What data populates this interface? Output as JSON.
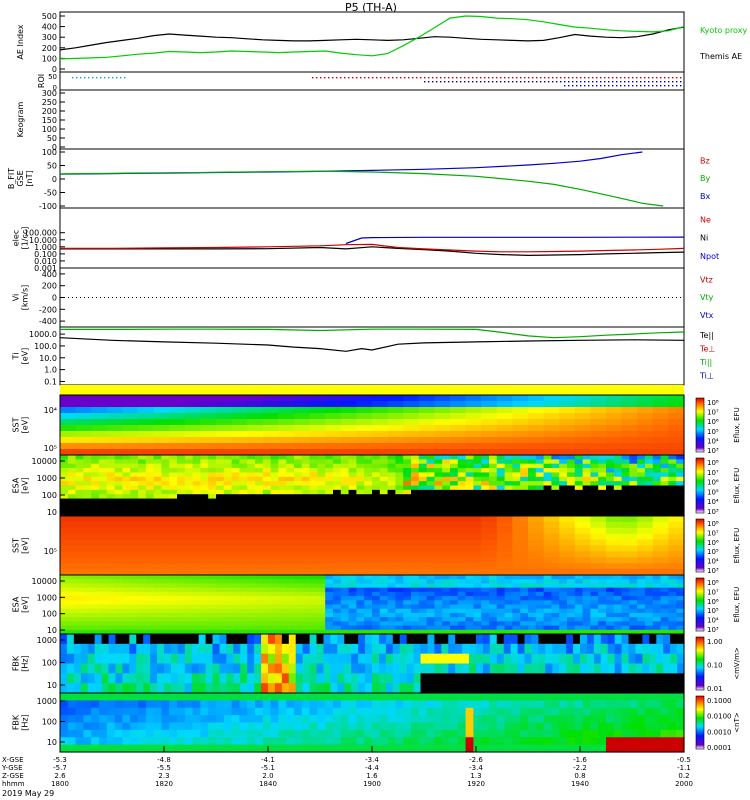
{
  "chart_data": {
    "type": "line",
    "title": "P5 (TH-A)",
    "date": "2019 May 29",
    "x_axis": {
      "ticks": [
        "1800",
        "1820",
        "1840",
        "1900",
        "1920",
        "1940",
        "2000"
      ],
      "rows": [
        {
          "label": "X-GSE",
          "values": [
            "-5.3",
            "-4.8",
            "-4.1",
            "-3.4",
            "-2.6",
            "-1.6",
            "-0.5"
          ]
        },
        {
          "label": "Y-GSE",
          "values": [
            "-5.7",
            "-5.5",
            "-5.1",
            "-4.4",
            "-3.4",
            "-2.2",
            "-1.1"
          ]
        },
        {
          "label": "Z-GSE",
          "values": [
            "2.6",
            "2.3",
            "2.0",
            "1.6",
            "1.3",
            "0.8",
            "0.2"
          ]
        },
        {
          "label": "hhmm",
          "values": [
            "1800",
            "1820",
            "1840",
            "1900",
            "1920",
            "1940",
            "2000"
          ]
        }
      ]
    },
    "panels": [
      {
        "id": "ae",
        "ylabel": [
          "AE Index"
        ],
        "ylim": [
          0,
          500
        ],
        "yticks": [
          "500",
          "400",
          "300",
          "200",
          "100",
          "0"
        ],
        "legend": [
          {
            "text": "Kyoto proxy AE",
            "color": "#00cc00"
          },
          {
            "text": "Themis AE",
            "color": "#000000"
          }
        ],
        "series": [
          {
            "name": "Themis AE",
            "color": "#000000",
            "x": [
              0,
              3,
              6,
              9,
              12,
              15,
              18,
              21,
              24,
              27,
              30,
              33,
              36,
              39,
              42,
              45,
              48,
              51,
              54,
              57,
              60,
              63,
              66,
              69,
              72,
              75,
              78,
              81,
              84,
              87,
              90,
              93,
              96,
              99,
              102,
              105,
              108,
              111,
              114,
              117,
              120
            ],
            "y": [
              180,
              200,
              225,
              250,
              270,
              290,
              315,
              330,
              320,
              310,
              300,
              295,
              285,
              275,
              270,
              265,
              265,
              270,
              275,
              280,
              275,
              270,
              275,
              290,
              305,
              300,
              290,
              280,
              275,
              270,
              265,
              270,
              295,
              325,
              310,
              300,
              295,
              305,
              330,
              370,
              395
            ]
          },
          {
            "name": "Kyoto proxy AE",
            "color": "#00cc00",
            "x": [
              0,
              3,
              6,
              9,
              12,
              15,
              18,
              21,
              24,
              27,
              30,
              33,
              36,
              39,
              42,
              45,
              48,
              51,
              54,
              57,
              60,
              63,
              66,
              69,
              72,
              75,
              78,
              81,
              84,
              87,
              90,
              93,
              96,
              99,
              102,
              105,
              108,
              111,
              114,
              117,
              120
            ],
            "y": [
              95,
              100,
              105,
              110,
              125,
              140,
              150,
              165,
              160,
              155,
              160,
              170,
              165,
              160,
              155,
              160,
              165,
              170,
              150,
              135,
              125,
              145,
              220,
              300,
              390,
              480,
              500,
              495,
              480,
              475,
              465,
              445,
              420,
              395,
              385,
              370,
              360,
              355,
              350,
              360,
              400
            ]
          }
        ]
      },
      {
        "id": "roi",
        "ylabel": [
          "ROI"
        ],
        "ytick_top": "50",
        "ytick_bottom": "0"
      },
      {
        "id": "keogram",
        "ylabel": [
          "Keogram"
        ],
        "ylim": [
          0,
          300
        ],
        "yticks": [
          "300",
          "250",
          "200",
          "150",
          "100",
          "50",
          "0"
        ]
      },
      {
        "id": "bfit",
        "ylabel": [
          "B_FIT",
          "GSE",
          "[nT]"
        ],
        "ylim": [
          -100,
          100
        ],
        "yticks": [
          "100",
          "50",
          "0",
          "-50",
          "-100"
        ],
        "legend": [
          {
            "text": "Bz",
            "color": "#cc0000"
          },
          {
            "text": "By",
            "color": "#00aa00"
          },
          {
            "text": "Bx",
            "color": "#0000cc"
          }
        ],
        "series": [
          {
            "name": "Bx",
            "color": "#0000cc",
            "x": [
              0,
              10,
              20,
              30,
              40,
              50,
              60,
              70,
              80,
              90,
              95,
              100,
              104,
              108,
              112
            ],
            "y": [
              18,
              20,
              22,
              24,
              26,
              28,
              32,
              36,
              42,
              52,
              58,
              66,
              76,
              90,
              100
            ]
          },
          {
            "name": "By",
            "color": "#00aa00",
            "x": [
              0,
              10,
              20,
              30,
              40,
              50,
              60,
              70,
              80,
              90,
              95,
              100,
              104,
              108,
              112,
              116
            ],
            "y": [
              19,
              21,
              23,
              25,
              27,
              29,
              26,
              20,
              10,
              -8,
              -20,
              -38,
              -55,
              -72,
              -90,
              -100
            ]
          }
        ]
      },
      {
        "id": "dens",
        "ylabel": [
          "elec",
          "[1/cc]"
        ],
        "ylim_log": [
          -3,
          5.5
        ],
        "yticks": [
          "100.000",
          "10.000",
          "1.000",
          "0.100",
          "0.010",
          "0.001"
        ],
        "legend": [
          {
            "text": "Ne",
            "color": "#cc0000"
          },
          {
            "text": "Ni",
            "color": "#000000"
          },
          {
            "text": "Npot",
            "color": "#0000cc"
          }
        ],
        "series": [
          {
            "name": "Ni",
            "color": "#000000",
            "x": [
              0,
              10,
              20,
              30,
              40,
              50,
              55,
              60,
              65,
              70,
              75,
              80,
              85,
              90,
              95,
              100,
              105,
              110,
              115,
              120
            ],
            "y": [
              0.5,
              0.5,
              0.5,
              0.5,
              0.55,
              0.8,
              0.5,
              1.0,
              0.6,
              0.4,
              0.25,
              0.12,
              0.08,
              0.06,
              0.07,
              0.08,
              0.1,
              0.12,
              0.15,
              0.18
            ]
          },
          {
            "name": "Ne",
            "color": "#cc0000",
            "x": [
              0,
              10,
              20,
              30,
              40,
              50,
              55,
              60,
              65,
              70,
              75,
              80,
              85,
              90,
              95,
              100,
              105,
              110,
              115,
              120
            ],
            "y": [
              0.6,
              0.6,
              0.7,
              0.8,
              1.0,
              1.4,
              2.0,
              2.2,
              0.8,
              0.5,
              0.35,
              0.25,
              0.2,
              0.2,
              0.22,
              0.25,
              0.3,
              0.35,
              0.45,
              0.6
            ]
          },
          {
            "name": "Npot",
            "color": "#0000cc",
            "x": [
              55,
              58,
              60,
              70,
              80,
              90,
              100,
              110,
              120
            ],
            "y": [
              3,
              18,
              20,
              22,
              22,
              22,
              22,
              23,
              24
            ]
          }
        ]
      },
      {
        "id": "vel",
        "ylabel": [
          "Vi",
          "[km/s]"
        ],
        "ylim": [
          -500,
          500
        ],
        "yticks": [
          "400",
          "200",
          "0",
          "-200",
          "-400"
        ],
        "legend": [
          {
            "text": "Vtz",
            "color": "#cc0000"
          },
          {
            "text": "Vty",
            "color": "#00aa00"
          },
          {
            "text": "Vtx",
            "color": "#0000cc"
          }
        ]
      },
      {
        "id": "temp",
        "ylabel": [
          "Ti",
          "[eV]"
        ],
        "ylim_log": [
          -1.3,
          3.6
        ],
        "yticks": [
          "1000.0",
          "100.0",
          "10.0",
          "1.0",
          "0.1"
        ],
        "legend": [
          {
            "text": "Te||",
            "color": "#000000"
          },
          {
            "text": "Te⊥",
            "color": "#cc0000"
          },
          {
            "text": "Ti||",
            "color": "#00aa00"
          },
          {
            "text": "Ti⊥",
            "color": "#0000cc"
          }
        ],
        "series": [
          {
            "name": "Ti||",
            "color": "#00aa00",
            "x": [
              0,
              10,
              20,
              30,
              40,
              50,
              60,
              70,
              80,
              85,
              90,
              95,
              100,
              105,
              110,
              115,
              120
            ],
            "y": [
              2500,
              2500,
              2600,
              2600,
              2500,
              2000,
              2600,
              2600,
              2500,
              1400,
              700,
              500,
              600,
              800,
              1000,
              1300,
              1500
            ]
          },
          {
            "name": "Te||",
            "color": "#000000",
            "x": [
              0,
              10,
              20,
              30,
              40,
              45,
              50,
              55,
              58,
              60,
              65,
              70,
              80,
              90,
              100,
              110,
              120
            ],
            "y": [
              500,
              300,
              220,
              170,
              120,
              80,
              60,
              35,
              60,
              45,
              140,
              180,
              220,
              260,
              300,
              330,
              300
            ]
          }
        ]
      },
      {
        "id": "sst_i",
        "ylabel": [
          "SST",
          "[eV]"
        ],
        "yticks": [
          "10⁴",
          "10⁵"
        ],
        "cbar_label": "Eflux, EFU",
        "cbar_ticks": [
          "10⁸",
          "10⁷",
          "10⁶",
          "10⁵",
          "10⁴",
          "10³"
        ]
      },
      {
        "id": "esa_i",
        "ylabel": [
          "ESA",
          "[eV]"
        ],
        "yticks": [
          "10000",
          "1000",
          "100",
          "10"
        ],
        "cbar_label": "Eflux, EFU",
        "cbar_ticks": [
          "10⁸",
          "10⁷",
          "10⁶",
          "10⁵",
          "10⁴",
          "10³"
        ]
      },
      {
        "id": "sst_e",
        "ylabel": [
          "SST",
          "[eV]"
        ],
        "yticks": [
          "10⁵"
        ],
        "cbar_label": "Eflux, EFU",
        "cbar_ticks": [
          "10⁸",
          "10⁷",
          "10⁶",
          "10⁵",
          "10⁴",
          "10³"
        ]
      },
      {
        "id": "esa_e",
        "ylabel": [
          "ESA",
          "[eV]"
        ],
        "yticks": [
          "10000",
          "1000",
          "100",
          "10"
        ],
        "cbar_label": "Eflux, EFU",
        "cbar_ticks": [
          "10⁸",
          "10⁷",
          "10⁶",
          "10⁵",
          "10⁴",
          "10³"
        ]
      },
      {
        "id": "fbk_e",
        "ylabel": [
          "FBK",
          "[Hz]"
        ],
        "yticks": [
          "1000",
          "100",
          "10"
        ],
        "cbar_label": "<mV/m>",
        "cbar_ticks": [
          "1.00",
          "0.10",
          "0.01"
        ]
      },
      {
        "id": "fbk_b",
        "ylabel": [
          "FBK",
          "[Hz]"
        ],
        "yticks": [
          "1000",
          "100",
          "10"
        ],
        "cbar_label": "<nT>",
        "cbar_ticks": [
          "0.1000",
          "0.0100",
          "0.0010",
          "0.0001"
        ]
      }
    ]
  },
  "colors": {
    "series_black": "#000000",
    "series_green": "#00cc00",
    "series_red": "#cc0000",
    "series_blue": "#0000cc"
  }
}
